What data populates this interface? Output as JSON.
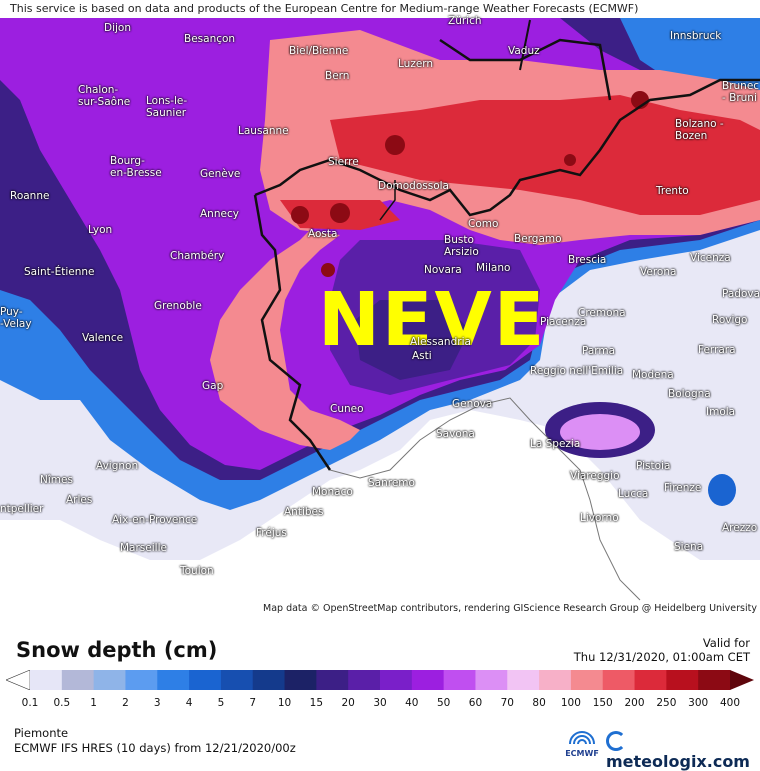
{
  "map": {
    "banner": "This service is based on data and products of the European Centre for Medium-range Weather Forecasts (ECMWF)",
    "overlay_text": "NEVE",
    "attribution": "Map data © OpenStreetMap contributors, rendering GIScience Research Group @ Heidelberg University",
    "cities": [
      {
        "name": "Dijon"
      },
      {
        "name": "Besançon"
      },
      {
        "name": "Biel/Bienne"
      },
      {
        "name": "Zürich"
      },
      {
        "name": "Vaduz"
      },
      {
        "name": "Innsbruck"
      },
      {
        "name": "Chalon-\nsur-Saône"
      },
      {
        "name": "Lons-le-\nSaunier"
      },
      {
        "name": "Bern"
      },
      {
        "name": "Luzern"
      },
      {
        "name": "Brunec\n- Bruni"
      },
      {
        "name": "Lausanne"
      },
      {
        "name": "Sierre"
      },
      {
        "name": "Bolzano -\nBozen"
      },
      {
        "name": "Bourg-\nen-Bresse"
      },
      {
        "name": "Genève"
      },
      {
        "name": "Domodossola"
      },
      {
        "name": "Trento"
      },
      {
        "name": "Roanne"
      },
      {
        "name": "Annecy"
      },
      {
        "name": "Como"
      },
      {
        "name": "Lyon"
      },
      {
        "name": "Aosta"
      },
      {
        "name": "Busto\nArsizio"
      },
      {
        "name": "Bergamo"
      },
      {
        "name": "Saint-Étienne"
      },
      {
        "name": "Chambéry"
      },
      {
        "name": "Novara"
      },
      {
        "name": "Milano"
      },
      {
        "name": "Brescia"
      },
      {
        "name": "Verona"
      },
      {
        "name": "Vicenza"
      },
      {
        "name": "Puy-\n-Velay"
      },
      {
        "name": "Grenoble"
      },
      {
        "name": "Piacenza"
      },
      {
        "name": "Cremona"
      },
      {
        "name": "Padova"
      },
      {
        "name": "Valence"
      },
      {
        "name": "Alessandria"
      },
      {
        "name": "Asti"
      },
      {
        "name": "Parma"
      },
      {
        "name": "Rovigo"
      },
      {
        "name": "Reggio nell'Emilia"
      },
      {
        "name": "Ferrara"
      },
      {
        "name": "Modena"
      },
      {
        "name": "Gap"
      },
      {
        "name": "Bologna"
      },
      {
        "name": "Cuneo"
      },
      {
        "name": "Genova"
      },
      {
        "name": "Imola"
      },
      {
        "name": "Savona"
      },
      {
        "name": "La Spezia"
      },
      {
        "name": "Avignon"
      },
      {
        "name": "Pistoia"
      },
      {
        "name": "Nîmes"
      },
      {
        "name": "Viareggio"
      },
      {
        "name": "Monaco"
      },
      {
        "name": "Sanremo"
      },
      {
        "name": "Arles"
      },
      {
        "name": "Lucca"
      },
      {
        "name": "Firenze"
      },
      {
        "name": "ntpellier"
      },
      {
        "name": "Antibes"
      },
      {
        "name": "Aix-en-Provence"
      },
      {
        "name": "Livorno"
      },
      {
        "name": "Arezzo"
      },
      {
        "name": "Fréjus"
      },
      {
        "name": "Marseille"
      },
      {
        "name": "Siena"
      },
      {
        "name": "Toulon"
      }
    ]
  },
  "legend": {
    "title": "Snow depth (cm)",
    "valid_label": "Valid for",
    "valid_value": "Thu 12/31/2020, 01:00am CET",
    "steps": [
      {
        "label": "0.1",
        "color": "#e6e6f7"
      },
      {
        "label": "0.5",
        "color": "#b3b8d8"
      },
      {
        "label": "1",
        "color": "#8fb4e8"
      },
      {
        "label": "2",
        "color": "#5c9cf0"
      },
      {
        "label": "3",
        "color": "#2e7fe6"
      },
      {
        "label": "4",
        "color": "#1a64d1"
      },
      {
        "label": "5",
        "color": "#174fb0"
      },
      {
        "label": "7",
        "color": "#143a8c"
      },
      {
        "label": "10",
        "color": "#1c2266"
      },
      {
        "label": "15",
        "color": "#3c1f86"
      },
      {
        "label": "20",
        "color": "#5a1fa8"
      },
      {
        "label": "30",
        "color": "#7a1fc9"
      },
      {
        "label": "40",
        "color": "#9c1fe0"
      },
      {
        "label": "50",
        "color": "#c04ff0"
      },
      {
        "label": "60",
        "color": "#dc8ff5"
      },
      {
        "label": "70",
        "color": "#f2c4f4"
      },
      {
        "label": "80",
        "color": "#f7b0c8"
      },
      {
        "label": "100",
        "color": "#f48a90"
      },
      {
        "label": "150",
        "color": "#ee5a66"
      },
      {
        "label": "200",
        "color": "#dc2a3a"
      },
      {
        "label": "250",
        "color": "#b8101e"
      },
      {
        "label": "300",
        "color": "#8c0a14"
      },
      {
        "label": "400",
        "color": "#5e060c"
      }
    ],
    "region": "Piemonte",
    "model": "ECMWF IFS HRES (10 days) from 12/21/2020/00z",
    "ecmwf_label": "ECMWF",
    "brand": "meteologix.com"
  }
}
